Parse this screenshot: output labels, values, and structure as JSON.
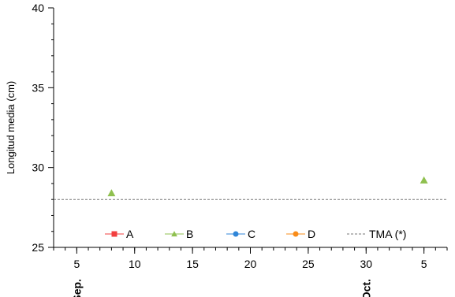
{
  "chart_data": {
    "type": "scatter",
    "title": "",
    "xlabel": "",
    "ylabel": "Longitud media (cm)",
    "ylim": [
      25,
      40
    ],
    "yticks": [
      25,
      30,
      35,
      40
    ],
    "xlim": [
      "2023-09-03",
      "2023-10-07"
    ],
    "xticks": [
      {
        "date": "2023-09-05",
        "label": "5"
      },
      {
        "date": "2023-09-10",
        "label": "10"
      },
      {
        "date": "2023-09-15",
        "label": "15"
      },
      {
        "date": "2023-09-20",
        "label": "20"
      },
      {
        "date": "2023-09-25",
        "label": "25"
      },
      {
        "date": "2023-09-30",
        "label": "30"
      },
      {
        "date": "2023-10-05",
        "label": "5"
      }
    ],
    "month_labels": [
      {
        "date": "2023-09-05",
        "label": "Sep."
      },
      {
        "date": "2023-09-30",
        "label": "Oct."
      }
    ],
    "series": [
      {
        "name": "A",
        "marker": "square",
        "color": "#f23f3f",
        "points": []
      },
      {
        "name": "B",
        "marker": "triangle",
        "color": "#8fc04f",
        "points": [
          {
            "x": "2023-09-08",
            "y": 28.4
          },
          {
            "x": "2023-10-05",
            "y": 29.2
          }
        ]
      },
      {
        "name": "C",
        "marker": "circle",
        "color": "#2f86d8",
        "points": []
      },
      {
        "name": "D",
        "marker": "circle",
        "color": "#f98c18",
        "points": []
      }
    ],
    "reference_lines": [
      {
        "name": "TMA (*)",
        "y": 28.0,
        "style": "dashed",
        "color": "#777777"
      }
    ],
    "legend": {
      "position": "bottom-inside"
    },
    "grid": false
  }
}
